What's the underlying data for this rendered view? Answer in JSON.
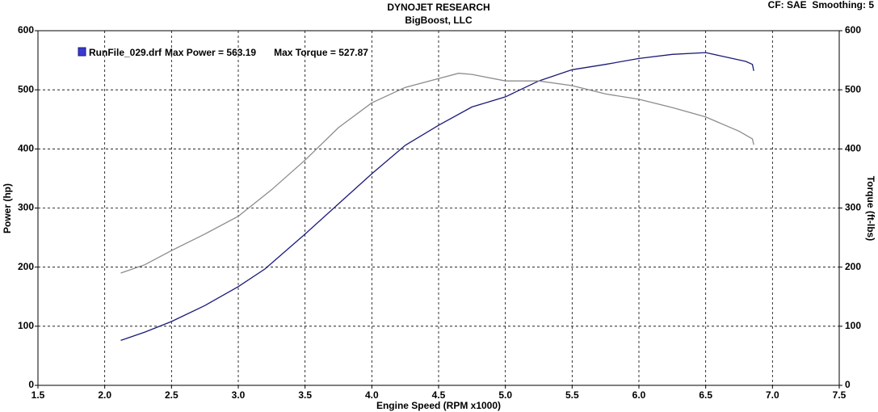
{
  "chart_data": {
    "type": "line",
    "title": "DYNOJET RESEARCH",
    "subtitle": "BigBoost, LLC",
    "settings_note": "CF: SAE  Smoothing: 5",
    "x_label": "Engine Speed (RPM x1000)",
    "y_label": "Power (hp)",
    "y2_label": "Torque (ft-lbs)",
    "annotations": [
      "Max Power = 563.19",
      "Max Torque = 527.87"
    ],
    "grid": true,
    "xlim": [
      1.5,
      7.5
    ],
    "xticks": [
      1.5,
      {
        "value": 2,
        "label": "2.0"
      },
      2.5,
      {
        "value": 3,
        "label": "3.0"
      },
      3.5,
      {
        "value": 4,
        "label": "4.0"
      },
      4.5,
      {
        "value": 5,
        "label": "5.0"
      },
      5.5,
      {
        "value": 6,
        "label": "6.0"
      },
      6.5,
      {
        "value": 7,
        "label": "7.0"
      },
      7.5
    ],
    "ylim": [
      0,
      600
    ],
    "yticks": [
      0,
      100,
      200,
      300,
      400,
      500,
      600
    ],
    "y2lim": [
      0,
      600
    ],
    "y2ticks": [
      0,
      100,
      200,
      300,
      400,
      500,
      600
    ],
    "series": [
      {
        "name": "RunFile_029.drf",
        "color": "#1a1a7a",
        "x": [
          2.12,
          2.3,
          2.5,
          2.75,
          3.0,
          3.2,
          3.5,
          3.75,
          4.0,
          4.25,
          4.5,
          4.75,
          5.0,
          5.25,
          5.5,
          5.75,
          6.0,
          6.25,
          6.5,
          6.6,
          6.8,
          6.85,
          6.86
        ],
        "values": [
          76,
          90,
          108,
          135,
          167,
          197,
          256,
          307,
          358,
          406,
          440,
          471,
          488,
          515,
          534,
          543,
          553,
          560,
          563,
          558,
          548,
          543,
          532
        ]
      },
      {
        "color": "#8c8c8c",
        "axis": "y2",
        "x": [
          2.12,
          2.3,
          2.5,
          2.75,
          3.0,
          3.25,
          3.5,
          3.75,
          4.0,
          4.25,
          4.5,
          4.65,
          4.75,
          5.0,
          5.25,
          5.5,
          5.75,
          6.0,
          6.25,
          6.5,
          6.75,
          6.85,
          6.86
        ],
        "values": [
          190,
          204,
          228,
          256,
          286,
          331,
          381,
          436,
          478,
          504,
          519,
          528,
          526,
          515,
          515,
          507,
          493,
          484,
          470,
          454,
          430,
          417,
          407
        ]
      }
    ]
  }
}
